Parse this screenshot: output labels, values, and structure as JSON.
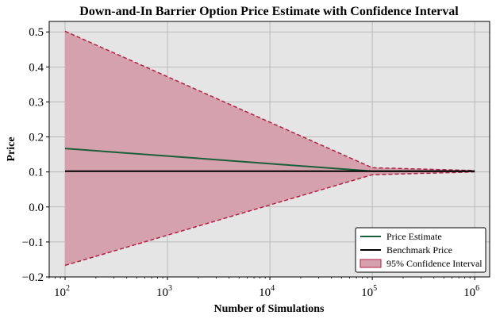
{
  "chart_data": {
    "type": "line",
    "title": "Down-and-In Barrier Option Price Estimate with Confidence Interval",
    "xlabel": "Number of Simulations",
    "ylabel": "Price",
    "x_scale": "log",
    "x_ticks": [
      {
        "value": 100,
        "base": "10",
        "exp": "2"
      },
      {
        "value": 1000,
        "base": "10",
        "exp": "3"
      },
      {
        "value": 10000,
        "base": "10",
        "exp": "4"
      },
      {
        "value": 100000,
        "base": "10",
        "exp": "5"
      },
      {
        "value": 1000000,
        "base": "10",
        "exp": "6"
      }
    ],
    "y_ticks": [
      "0.5",
      "0.4",
      "0.3",
      "0.2",
      "0.1",
      "0.0",
      "−0.1",
      "−0.2"
    ],
    "y_tick_values": [
      0.5,
      0.4,
      0.3,
      0.2,
      0.1,
      0.0,
      -0.1,
      -0.2
    ],
    "xlim": [
      70,
      1400000
    ],
    "ylim": [
      -0.2,
      0.53
    ],
    "grid": true,
    "legend_position": "bottom-right",
    "x": [
      100,
      100000,
      1000000
    ],
    "series": [
      {
        "name": "Price Estimate",
        "values": [
          0.167,
          0.102,
          0.102
        ],
        "color": "#1b5e3a",
        "style": "solid"
      },
      {
        "name": "Benchmark Price",
        "values": [
          0.102,
          0.102,
          0.102
        ],
        "color": "#000000",
        "style": "solid"
      },
      {
        "name": "95% Confidence Interval",
        "type": "band",
        "lower": [
          -0.167,
          0.092,
          0.1
        ],
        "upper": [
          0.502,
          0.112,
          0.104
        ],
        "color": "#d4a1ad",
        "edge_color": "#b51f45"
      }
    ]
  }
}
